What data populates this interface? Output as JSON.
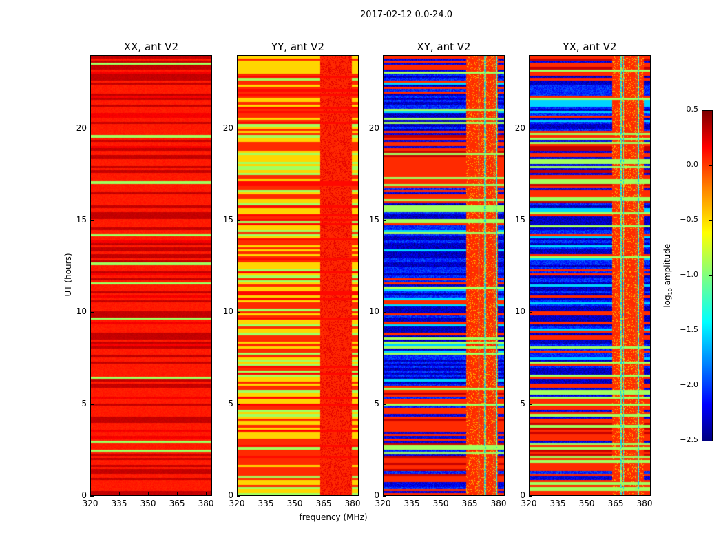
{
  "chart_data": {
    "type": "heatmap",
    "title": "2017-02-12 0.0-24.0",
    "xlabel": "frequency (MHz)",
    "ylabel": "UT (hours)",
    "xlim": [
      320,
      383.2
    ],
    "ylim": [
      0,
      24
    ],
    "xticks": [
      "320",
      "335",
      "350",
      "365",
      "380"
    ],
    "xtick_values": [
      320,
      335,
      350,
      365,
      380
    ],
    "yticks": [
      "0",
      "5",
      "10",
      "15",
      "20"
    ],
    "ytick_values": [
      0,
      5,
      10,
      15,
      20
    ],
    "panels": [
      {
        "title": "XX, ant V2",
        "pol": "XX",
        "dominant_log_amp": 0.0,
        "band_values": [
          0.3,
          -0.9
        ]
      },
      {
        "title": "YY, ant V2",
        "pol": "YY",
        "dominant_log_amp": -0.5,
        "band_values": [
          0.0,
          -0.9,
          0.2
        ]
      },
      {
        "title": "XY, ant V2",
        "pol": "XY",
        "dominant_log_amp": 0.0,
        "band_values": [
          -2.3,
          -2.0,
          -0.9,
          -1.5
        ]
      },
      {
        "title": "YX, ant V2",
        "pol": "YX",
        "dominant_log_amp": 0.0,
        "band_values": [
          -2.3,
          -2.0,
          -0.9,
          -1.5
        ]
      }
    ],
    "colorbar": {
      "label_prefix": "log",
      "label_sub": "10",
      "label_suffix": " amplitude",
      "colormap": "jet",
      "range": [
        -2.5,
        0.5
      ],
      "ticks": [
        "0.5",
        "0.0",
        "−0.5",
        "−1.0",
        "−1.5",
        "−2.0",
        "−2.5"
      ],
      "tick_values": [
        0.5,
        0.0,
        -0.5,
        -1.0,
        -1.5,
        -2.0,
        -2.5
      ]
    }
  }
}
